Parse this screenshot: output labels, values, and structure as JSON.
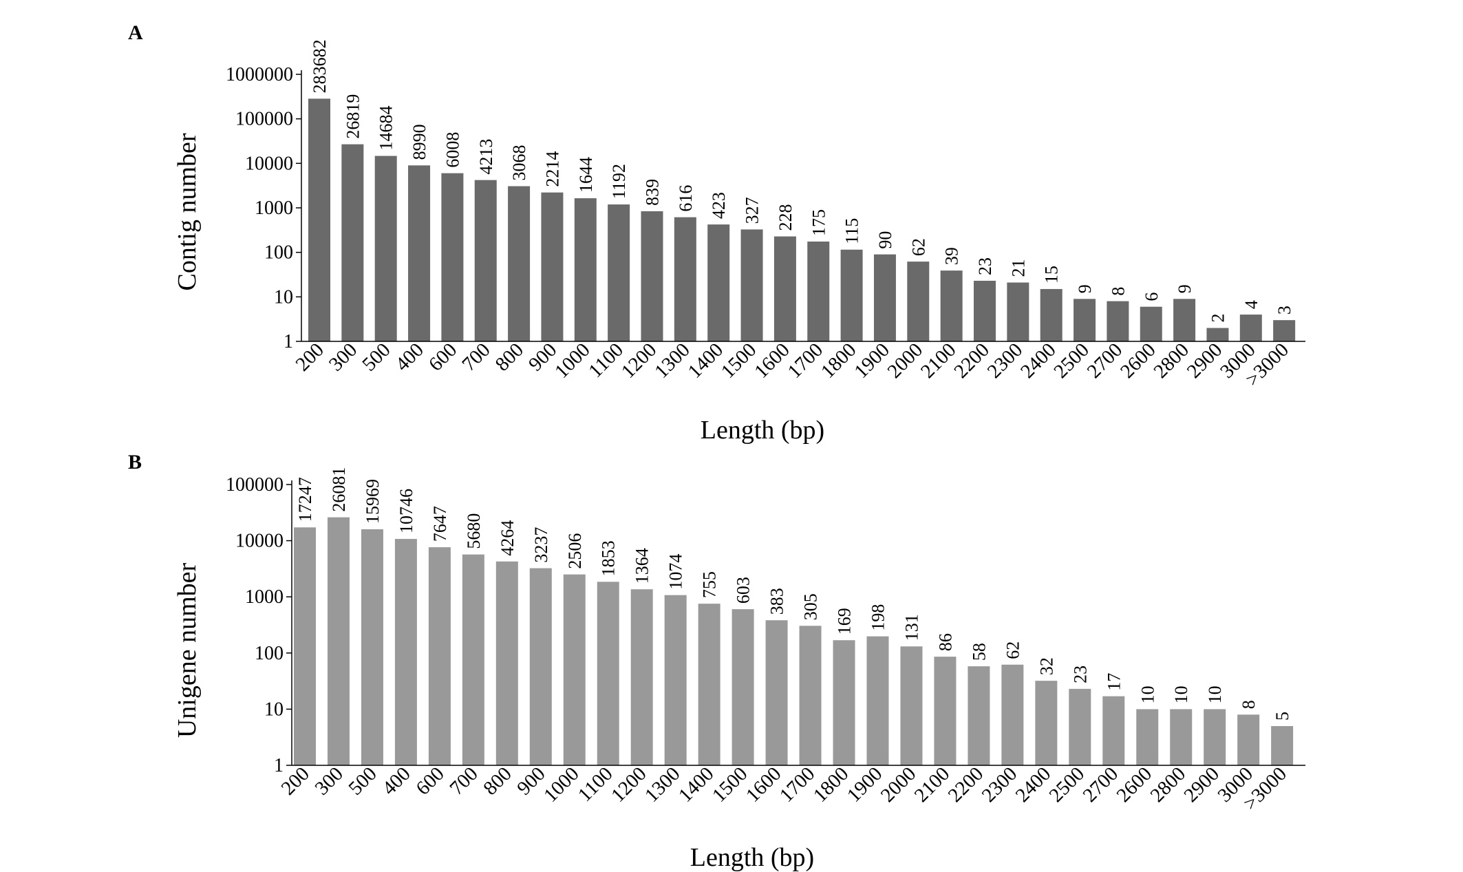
{
  "chart_data": [
    {
      "panel": "A",
      "type": "bar",
      "xlabel": "Length (bp)",
      "ylabel": "Contig number",
      "yscale": "log",
      "ylim": [
        1,
        1000000
      ],
      "yticks": [
        "1",
        "10",
        "100",
        "1000",
        "10000",
        "100000",
        "1000000"
      ],
      "bar_color": "#6a6a6a",
      "categories": [
        "200",
        "300",
        "500",
        "400",
        "600",
        "700",
        "800",
        "900",
        "1000",
        "1100",
        "1200",
        "1300",
        "1400",
        "1500",
        "1600",
        "1700",
        "1800",
        "1900",
        "2000",
        "2100",
        "2200",
        "2300",
        "2400",
        "2500",
        "2700",
        "2600",
        "2800",
        "2900",
        "3000",
        ">3000"
      ],
      "values": [
        283682,
        26819,
        14684,
        8990,
        6008,
        4213,
        3068,
        2214,
        1644,
        1192,
        839,
        616,
        423,
        327,
        228,
        175,
        115,
        90,
        62,
        39,
        23,
        21,
        15,
        9,
        8,
        6,
        9,
        2,
        4,
        3
      ]
    },
    {
      "panel": "B",
      "type": "bar",
      "xlabel": "Length (bp)",
      "ylabel": "Unigene number",
      "yscale": "log",
      "ylim": [
        1,
        100000
      ],
      "yticks": [
        "1",
        "10",
        "100",
        "1000",
        "10000",
        "100000"
      ],
      "bar_color": "#999999",
      "categories": [
        "200",
        "300",
        "500",
        "400",
        "600",
        "700",
        "800",
        "900",
        "1000",
        "1100",
        "1200",
        "1300",
        "1400",
        "1500",
        "1600",
        "1700",
        "1800",
        "1900",
        "2000",
        "2100",
        "2200",
        "2300",
        "2400",
        "2500",
        "2700",
        "2600",
        "2800",
        "2900",
        "3000",
        ">3000"
      ],
      "values": [
        17247,
        26081,
        15969,
        10746,
        7647,
        5680,
        4264,
        3237,
        2506,
        1853,
        1364,
        1074,
        755,
        603,
        383,
        305,
        169,
        198,
        131,
        86,
        58,
        62,
        32,
        23,
        17,
        10,
        10,
        10,
        8,
        5
      ]
    }
  ]
}
